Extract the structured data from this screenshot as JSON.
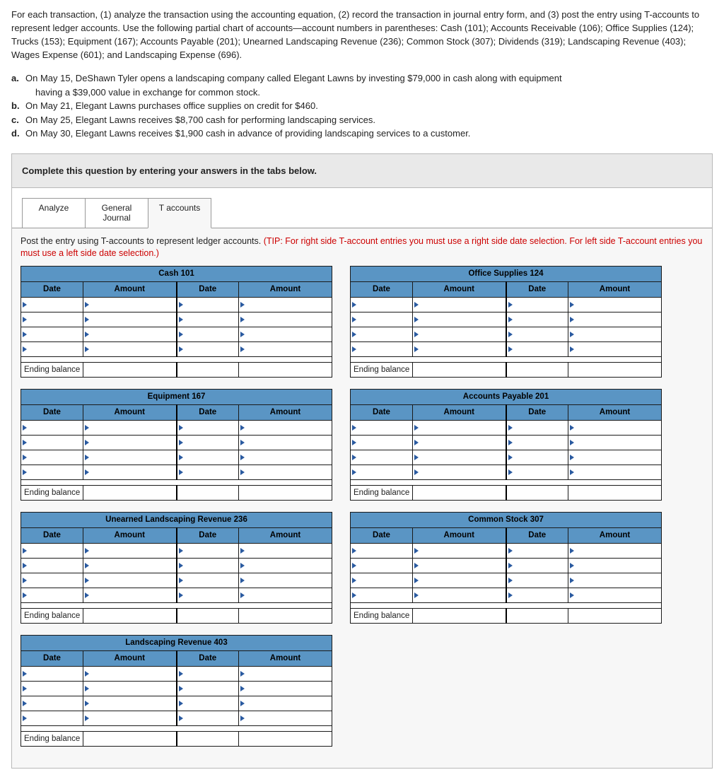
{
  "intro": {
    "para1": "For each transaction, (1) analyze the transaction using the accounting equation, (2) record the transaction in journal entry form, and (3) post the entry using T-accounts to represent ledger accounts. Use the following partial chart of accounts—account numbers in parentheses: Cash (101); Accounts Receivable (106); Office Supplies (124); Trucks (153); Equipment (167); Accounts Payable (201); Unearned Landscaping Revenue (236); Common Stock (307); Dividends (319); Landscaping Revenue (403); Wages Expense (601); and Landscaping Expense (696)."
  },
  "transactions": {
    "a": {
      "label": "a.",
      "text": "On May 15, DeShawn Tyler opens a landscaping company called Elegant Lawns by investing $79,000 in cash along with equipment",
      "text2": "having a $39,000 value in exchange for common stock."
    },
    "b": {
      "label": "b.",
      "text": "On May 21, Elegant Lawns purchases office supplies on credit for $460."
    },
    "c": {
      "label": "c.",
      "text": "On May 25, Elegant Lawns receives $8,700 cash for performing landscaping services."
    },
    "d": {
      "label": "d.",
      "text": "On May 30, Elegant Lawns receives $1,900 cash in advance of providing landscaping services to a customer."
    }
  },
  "promptBar": "Complete this question by entering your answers in the tabs below.",
  "tabs": {
    "analyze": "Analyze",
    "journal1": "General",
    "journal2": "Journal",
    "taccounts": "T accounts"
  },
  "panel": {
    "instrPlain": "Post the entry using T-accounts to represent ledger accounts. ",
    "instrTip": "(TIP: For right side T-account entries you must use a right side date selection. For left side T-account entries you must use a left side date selection.)"
  },
  "headers": {
    "date": "Date",
    "amount": "Amount",
    "ending": "Ending balance"
  },
  "accounts": {
    "cash": "Cash 101",
    "supplies": "Office Supplies 124",
    "equipment": "Equipment 167",
    "ap": "Accounts Payable 201",
    "unearned": "Unearned Landscaping Revenue 236",
    "cs": "Common Stock 307",
    "rev": "Landscaping Revenue 403"
  },
  "layout": {
    "leftAccounts": [
      "cash",
      "equipment",
      "unearned",
      "rev"
    ],
    "rightAccounts": [
      "supplies",
      "ap",
      "cs"
    ],
    "bodyRowsPerAccount": 4
  },
  "style": {
    "headerBg": "#5a95c4",
    "triColor": "#2a5aa0",
    "tipColor": "#c00"
  }
}
